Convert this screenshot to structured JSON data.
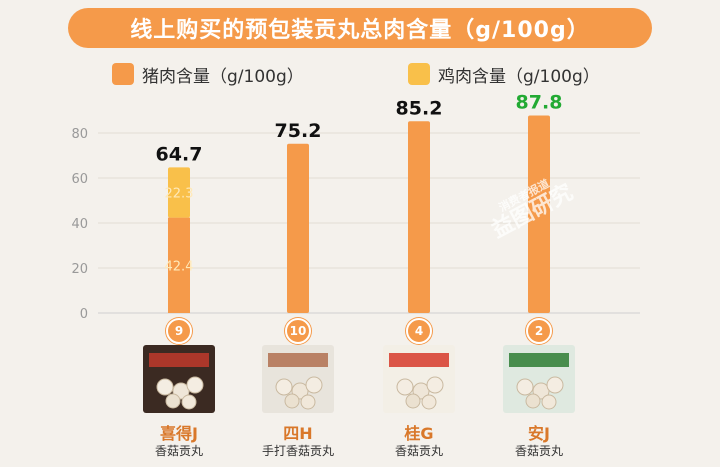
{
  "title": "线上购买的预包装贡丸总肉含量（g/100g）",
  "legend": [
    {
      "label": "猪肉含量（g/100g）",
      "color": "#f59a4a"
    },
    {
      "label": "鸡肉含量（g/100g）",
      "color": "#f9c04a"
    }
  ],
  "chart_data": {
    "type": "bar",
    "stacked": true,
    "categories": [
      "喜得J",
      "四H",
      "桂G",
      "安J"
    ],
    "series": [
      {
        "name": "猪肉含量（g/100g）",
        "values": [
          42.4,
          75.2,
          85.2,
          87.8
        ],
        "color": "#f59a4a"
      },
      {
        "name": "鸡肉含量（g/100g）",
        "values": [
          22.3,
          0,
          0,
          0
        ],
        "color": "#f9c04a"
      }
    ],
    "totals": [
      "64.7",
      "75.2",
      "85.2",
      "87.8"
    ],
    "total_colors": [
      "#111111",
      "#111111",
      "#111111",
      "#22aa33"
    ],
    "segment_labels": [
      [
        "42.4",
        "22.3"
      ],
      [
        "",
        ""
      ],
      [
        "",
        ""
      ],
      [
        "",
        ""
      ]
    ],
    "yticks": [
      "0",
      "20",
      "40",
      "60",
      "80"
    ],
    "ylim": [
      0,
      90
    ]
  },
  "products": [
    {
      "rank": "9",
      "brand": "喜得J",
      "desc": "香菇贡丸",
      "pack_color": "#3b2a22",
      "accent": "#c0392b"
    },
    {
      "rank": "10",
      "brand": "四H",
      "desc": "手打香菇贡丸",
      "pack_color": "#e8e4dc",
      "accent": "#b07050"
    },
    {
      "rank": "4",
      "brand": "桂G",
      "desc": "香菇贡丸",
      "pack_color": "#f3efe6",
      "accent": "#d63a2a"
    },
    {
      "rank": "2",
      "brand": "安J",
      "desc": "香菇贡丸",
      "pack_color": "#dfe9e0",
      "accent": "#2e7d32"
    }
  ],
  "watermark": {
    "line1": "消费者报道",
    "line2": "益图研究"
  }
}
